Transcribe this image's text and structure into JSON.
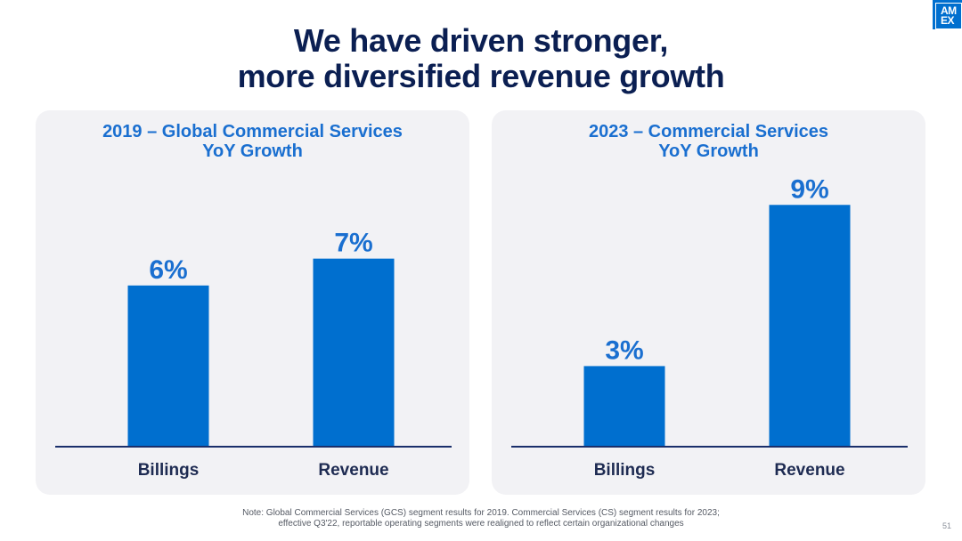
{
  "slide": {
    "title_line1": "We have driven stronger,",
    "title_line2": "more diversified revenue growth",
    "logo_line1": "AM",
    "logo_line2": "EX",
    "footnote_line1": "Note: Global Commercial Services (GCS) segment results for 2019. Commercial Services (CS) segment results for 2023;",
    "footnote_line2": "effective Q3'22, reportable operating segments were realigned to reflect certain organizational changes",
    "page_number": "51"
  },
  "colors": {
    "bar": "#006fcf",
    "axis": "#1a2f6b",
    "value_label": "#1a6fd0",
    "category_label": "#1e2b52"
  },
  "chart_data": [
    {
      "type": "bar",
      "title_line1": "2019 – Global Commercial Services",
      "title_line2": "YoY Growth",
      "categories": [
        "Billings",
        "Revenue"
      ],
      "values": [
        6,
        7
      ],
      "value_labels": [
        "6%",
        "7%"
      ],
      "unit": "%",
      "ylim": [
        0,
        10.4
      ],
      "grid": false,
      "legend": "none"
    },
    {
      "type": "bar",
      "title_line1": "2023 – Commercial Services",
      "title_line2": "YoY Growth",
      "categories": [
        "Billings",
        "Revenue"
      ],
      "values": [
        3,
        9
      ],
      "value_labels": [
        "3%",
        "9%"
      ],
      "unit": "%",
      "ylim": [
        0,
        10.4
      ],
      "grid": false,
      "legend": "none"
    }
  ]
}
